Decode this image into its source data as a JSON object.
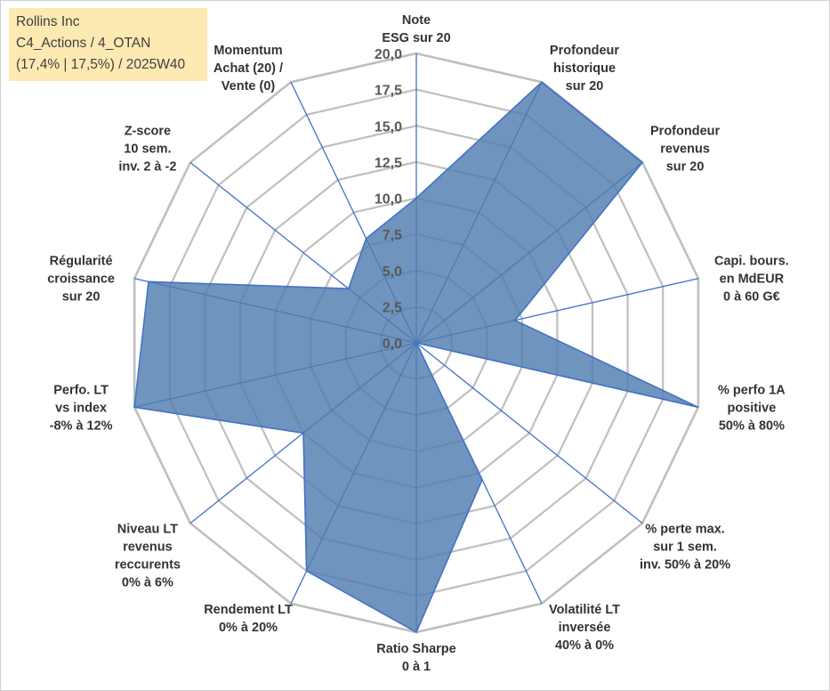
{
  "info": {
    "company": "Rollins Inc",
    "category": "C4_Actions / 4_OTAN",
    "details": "(17,4% | 17,5%) / 2025W40"
  },
  "colors": {
    "series_fill": "#4f7cb0",
    "series_stroke": "#4472c4",
    "grid": "#bfbfbf",
    "spoke": "#4472c4",
    "info_bg": "#fde9b2"
  },
  "chart_data": {
    "type": "radar",
    "title": "",
    "rlim": [
      0,
      20
    ],
    "ticks": [
      "0,0",
      "2,5",
      "5,0",
      "7,5",
      "10,0",
      "12,5",
      "15,0",
      "17,5",
      "20,0"
    ],
    "axes": [
      {
        "lines": [
          "Note",
          "ESG sur 20"
        ]
      },
      {
        "lines": [
          "Profondeur",
          "historique",
          "sur 20"
        ]
      },
      {
        "lines": [
          "Profondeur",
          "revenus",
          "sur 20"
        ]
      },
      {
        "lines": [
          "Capi. bours.",
          "en MdEUR",
          "0 à 60 G€"
        ]
      },
      {
        "lines": [
          "% perfo 1A",
          "positive",
          "50% à 80%"
        ]
      },
      {
        "lines": [
          "% perte max.",
          "sur 1 sem.",
          "inv. 50% à 20%"
        ]
      },
      {
        "lines": [
          "Volatilité LT",
          "inversée",
          "40% à 0%"
        ]
      },
      {
        "lines": [
          "Ratio Sharpe",
          "0 à 1"
        ]
      },
      {
        "lines": [
          "Rendement LT",
          "0% à 20%"
        ]
      },
      {
        "lines": [
          "Niveau LT",
          "revenus",
          "reccurents",
          "0% à 6%"
        ]
      },
      {
        "lines": [
          "Perfo. LT",
          "vs index",
          "-8% à 12%"
        ]
      },
      {
        "lines": [
          "Régularité",
          "croissance",
          "sur 20"
        ]
      },
      {
        "lines": [
          "Z-score",
          "10 sem.",
          "inv. 2 à -2"
        ]
      },
      {
        "lines": [
          "Momentum",
          "Achat (20) /",
          "Vente (0)"
        ]
      }
    ],
    "series": [
      {
        "name": "Rollins Inc",
        "values": [
          10.0,
          20.0,
          20.0,
          7.0,
          20.0,
          0.0,
          10.5,
          20.0,
          17.5,
          10.0,
          20.0,
          19.0,
          6.0,
          8.0
        ]
      }
    ]
  }
}
